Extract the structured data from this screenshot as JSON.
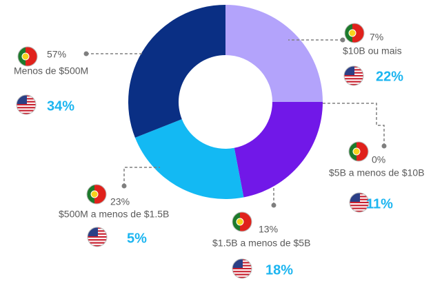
{
  "chart_data": {
    "type": "donut",
    "categories": [
      "Menos de $500M",
      "$500M a menos de $1.5B",
      "$1.5B a menos de $5B",
      "$5B a menos de $10B",
      "$10B ou mais"
    ],
    "series": [
      {
        "values": [
          57,
          23,
          13,
          0,
          7
        ],
        "value_labels": [
          "57%",
          "23%",
          "13%",
          "0%",
          "7%"
        ],
        "color": "#595959"
      },
      {
        "values": [
          34,
          5,
          18,
          11,
          22
        ],
        "value_labels": [
          "34%",
          "5%",
          "18%",
          "11%",
          "22%"
        ],
        "color": "#1cb5f0"
      }
    ],
    "segments": {
      "values": [
        25,
        22,
        22,
        31
      ],
      "colors": [
        "#b3a3fb",
        "#7118e8",
        "#13b9f3",
        "#0a2f84"
      ]
    }
  }
}
